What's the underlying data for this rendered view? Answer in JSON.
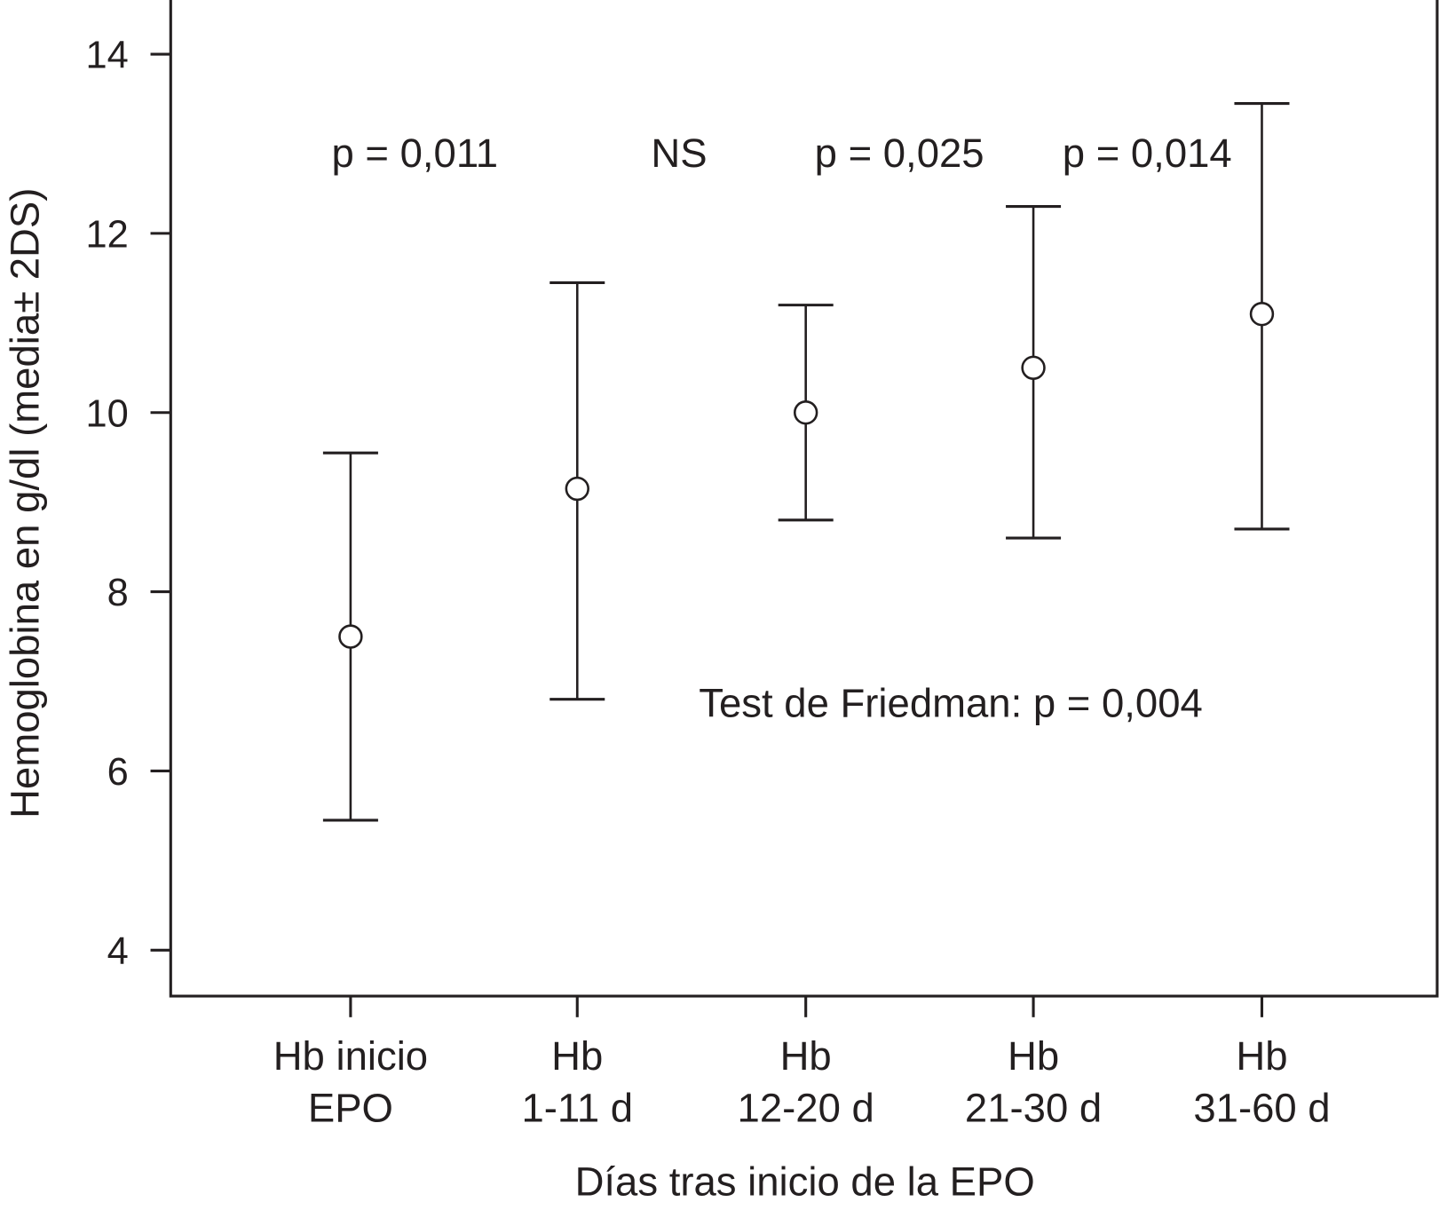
{
  "chart_data": {
    "type": "errorbar",
    "title": "",
    "xlabel": "Días tras inicio de la EPO",
    "ylabel": "Hemoglobina en g/dl (media± 2DS)",
    "ylim": [
      3,
      14.6
    ],
    "yticks": [
      4,
      6,
      8,
      10,
      12,
      14
    ],
    "categories": [
      [
        "Hb inicio",
        "EPO"
      ],
      [
        "Hb",
        "1-11 d"
      ],
      [
        "Hb",
        "12-20 d"
      ],
      [
        "Hb",
        "21-30 d"
      ],
      [
        "Hb",
        "31-60 d"
      ]
    ],
    "series": [
      {
        "name": "Hemoglobina",
        "mean": [
          7.5,
          9.15,
          10.0,
          10.5,
          11.1
        ],
        "upper": [
          9.55,
          11.45,
          11.2,
          12.3,
          13.45
        ],
        "lower": [
          5.45,
          6.8,
          8.8,
          8.6,
          8.7
        ]
      }
    ],
    "annotations": {
      "pairwise": [
        "p = 0,011",
        "NS",
        "p = 0,025",
        "p = 0,014"
      ],
      "friedman": "Test de Friedman: p = 0,004"
    },
    "grid": false,
    "legend": "none"
  }
}
